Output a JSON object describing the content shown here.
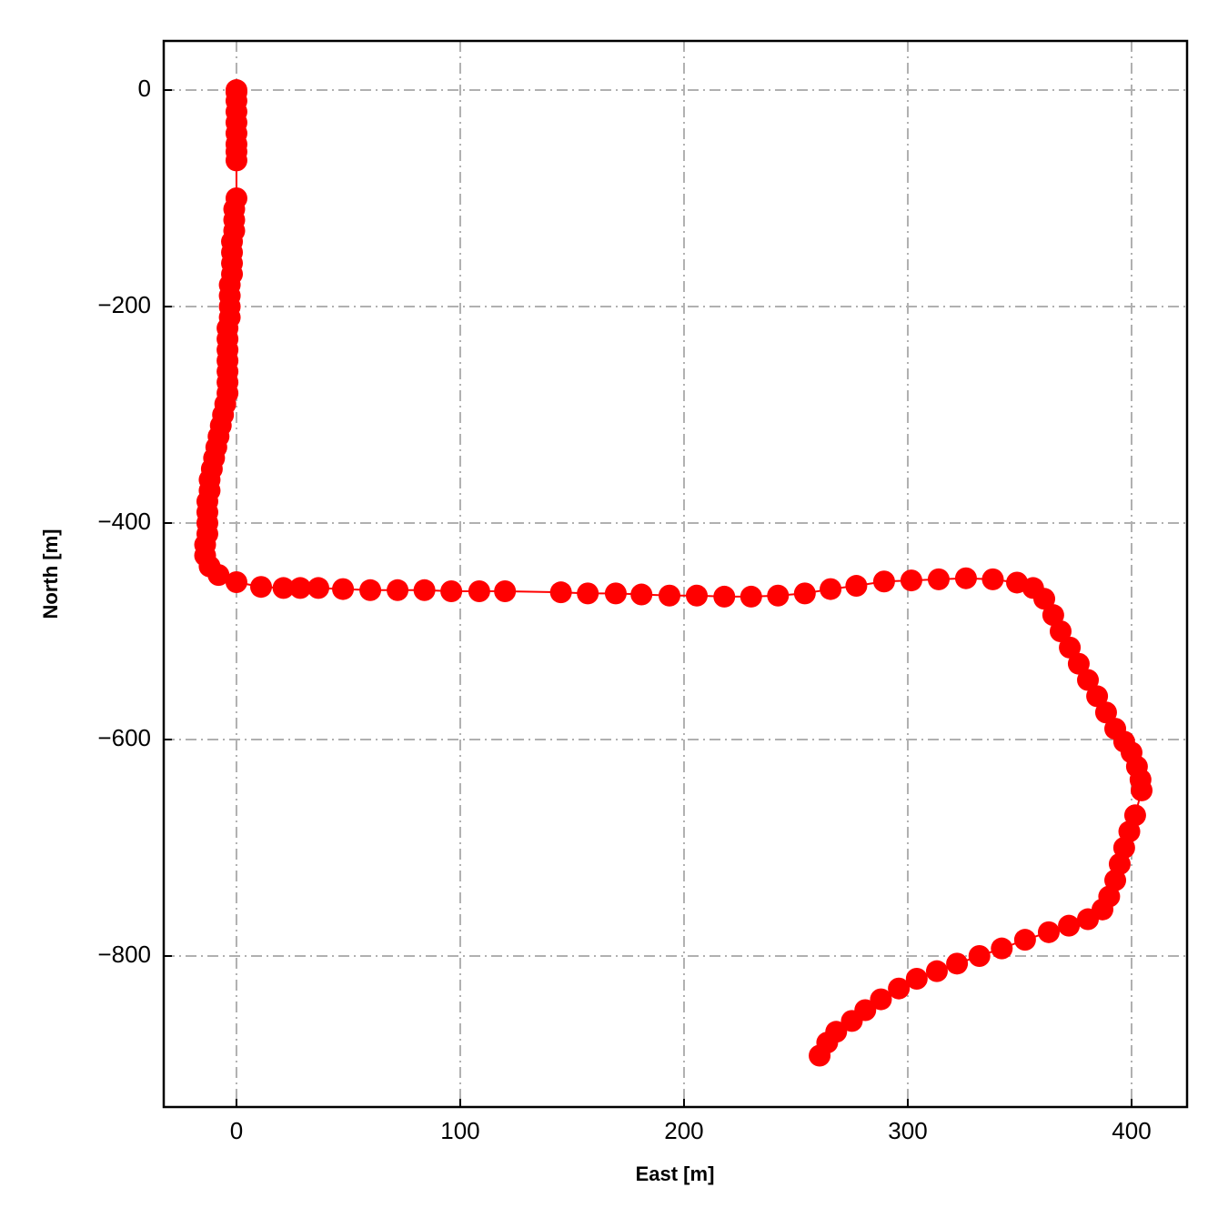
{
  "chart_data": {
    "type": "line",
    "color": "#ff0000",
    "grid": true,
    "xlabel": "East [m]",
    "ylabel": "North [m]",
    "xlim": [
      -32.5,
      424.8
    ],
    "ylim": [
      -939.5,
      45.4
    ],
    "xticks": [
      0,
      100,
      200,
      300,
      400
    ],
    "yticks": [
      0,
      {
        "value": -200,
        "label": "−200"
      },
      {
        "value": -400,
        "label": "−400"
      },
      {
        "value": -600,
        "label": "−600"
      },
      {
        "value": -800,
        "label": "−800"
      }
    ],
    "x": [
      0,
      0,
      0,
      0,
      0,
      0,
      0,
      0,
      0,
      0,
      -1,
      -1,
      -1,
      -2,
      -2,
      -2,
      -2,
      -3,
      -3,
      -3,
      -3,
      -4,
      -4,
      -4,
      -4,
      -4,
      -4,
      -4,
      -5,
      -6,
      -7,
      -8,
      -9,
      -10,
      -11,
      -12,
      -12,
      -13,
      -13,
      -13,
      -13,
      -14,
      -14,
      -12,
      -8,
      0,
      11,
      21,
      28.5,
      36.6,
      47.6,
      59.8,
      72,
      84,
      96,
      108.5,
      120,
      145,
      157,
      169.5,
      181,
      193.5,
      205.7,
      218,
      230,
      242,
      254,
      265.5,
      277,
      289.4,
      301.6,
      313.8,
      326,
      338,
      348.8,
      356,
      361,
      365,
      368.3,
      372.4,
      376.4,
      380.5,
      384.6,
      388.6,
      392.7,
      396.7,
      400,
      402.4,
      404,
      404.5,
      401.6,
      399,
      396.7,
      394.7,
      392.7,
      390,
      387,
      380.5,
      372,
      363,
      352.4,
      342,
      332,
      322,
      313,
      304,
      296,
      288,
      281,
      275,
      268,
      264,
      260.6
    ],
    "values": [
      0,
      -2,
      -10,
      -20,
      -30,
      -40,
      -50,
      -57,
      -65,
      -100,
      -110,
      -120,
      -130,
      -140,
      -150,
      -160,
      -170,
      -180,
      -190,
      -200,
      -210,
      -220,
      -230,
      -240,
      -250,
      -260,
      -270,
      -280,
      -290,
      -300,
      -310,
      -320,
      -330,
      -340,
      -350,
      -360,
      -370,
      -380,
      -390,
      -400,
      -410,
      -420,
      -430,
      -440,
      -448,
      -454.6,
      -459,
      -460,
      -460,
      -460,
      -461,
      -462,
      -462,
      -462,
      -463,
      -463,
      -463,
      -464,
      -465,
      -465,
      -466,
      -467,
      -467,
      -468,
      -468,
      -467,
      -465,
      -461,
      -458,
      -454,
      -453,
      -452,
      -451,
      -452,
      -455,
      -460,
      -470,
      -485,
      -500,
      -515,
      -530,
      -545,
      -560,
      -575,
      -590,
      -602,
      -612,
      -625,
      -637,
      -647,
      -670,
      -685,
      -700,
      -715,
      -730,
      -745,
      -757,
      -766,
      -772,
      -778,
      -785,
      -793,
      -800,
      -807,
      -814,
      -821,
      -830,
      -840,
      -850,
      -860,
      -870,
      -880,
      -892
    ]
  }
}
